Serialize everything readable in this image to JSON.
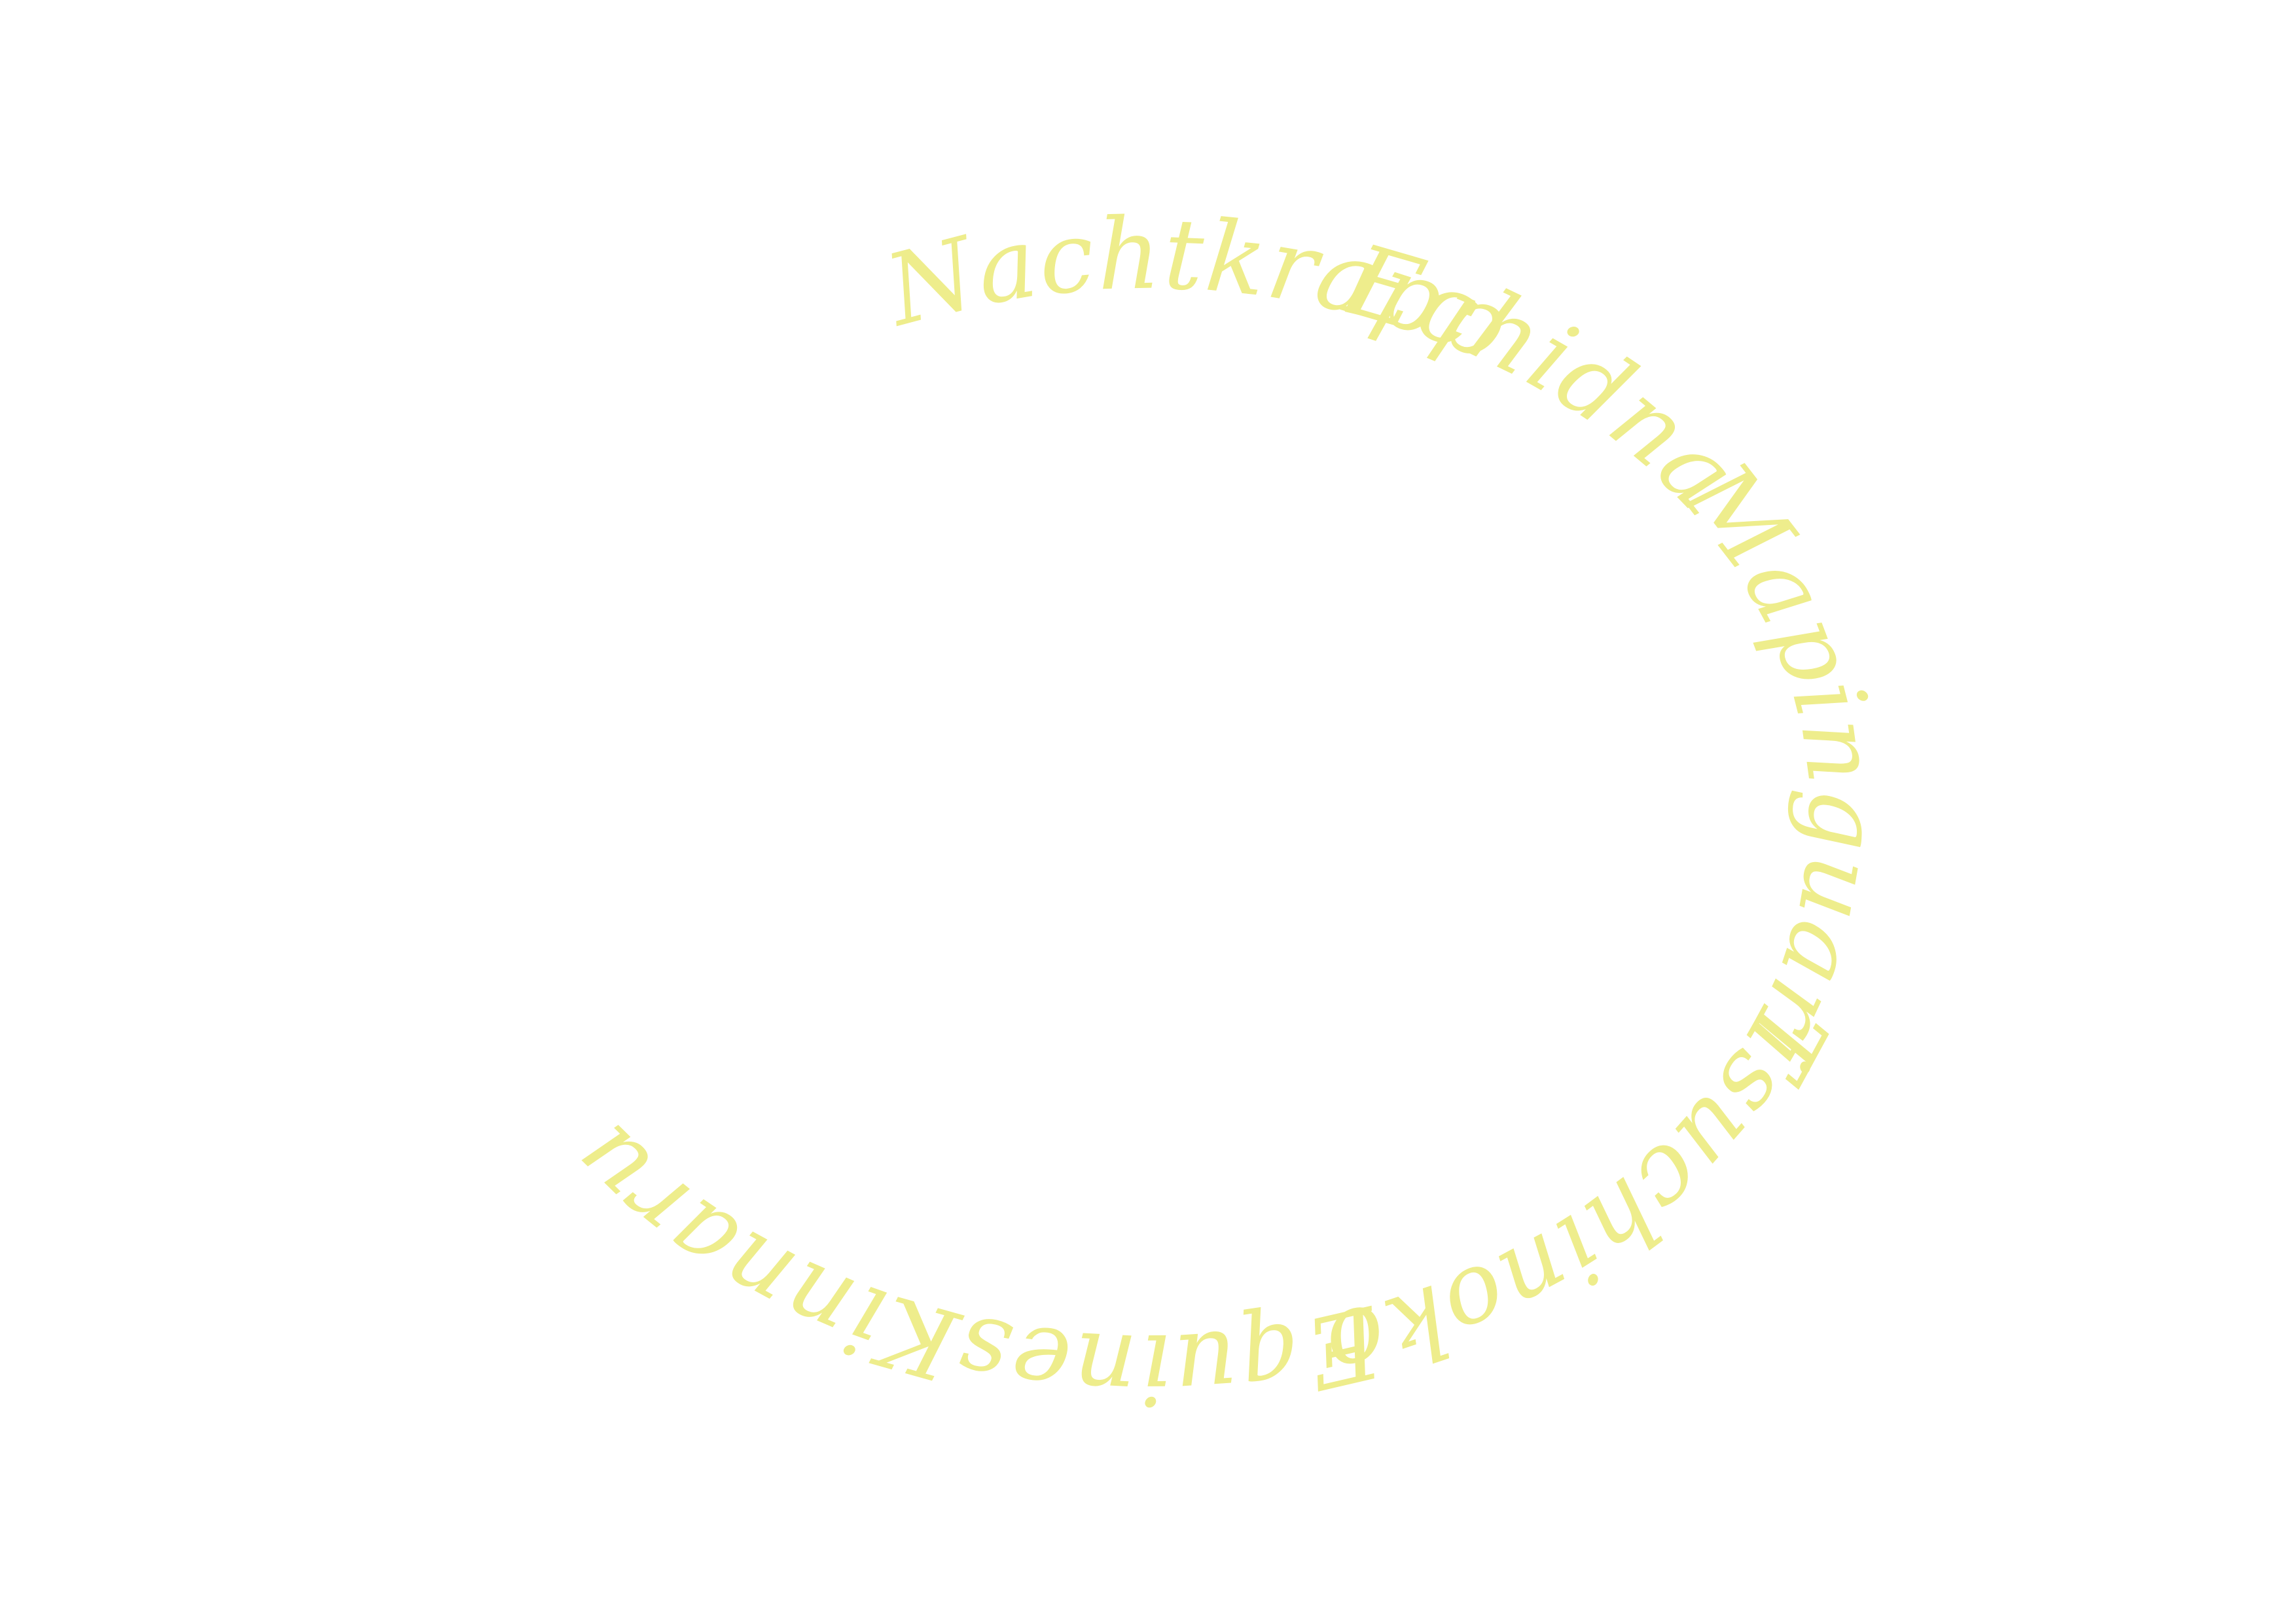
{
  "text_color": "#eeed8c",
  "background": "#ffffff",
  "ring": {
    "words": [
      {
        "id": "nachtkrapp",
        "text": "Nachtkrapp"
      },
      {
        "id": "echidna",
        "text": "Echidna"
      },
      {
        "id": "mapinguari",
        "text": "Mapinguari"
      },
      {
        "id": "tsuchinoko",
        "text": "Tsuchinoko"
      },
      {
        "id": "equines",
        "text": "Equines"
      },
      {
        "id": "kinnaru",
        "text": "Kinnaru"
      }
    ]
  }
}
